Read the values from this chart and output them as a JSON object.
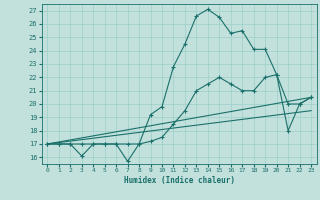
{
  "xlabel": "Humidex (Indice chaleur)",
  "background_color": "#c2e0dc",
  "grid_color": "#9ecfca",
  "line_color": "#1a706a",
  "xlim": [
    -0.5,
    23.5
  ],
  "ylim": [
    15.5,
    27.5
  ],
  "yticks": [
    16,
    17,
    18,
    19,
    20,
    21,
    22,
    23,
    24,
    25,
    26,
    27
  ],
  "xticks": [
    0,
    1,
    2,
    3,
    4,
    5,
    6,
    7,
    8,
    9,
    10,
    11,
    12,
    13,
    14,
    15,
    16,
    17,
    18,
    19,
    20,
    21,
    22,
    23
  ],
  "lines": [
    {
      "x": [
        0,
        1,
        2,
        3,
        4,
        5,
        6,
        7,
        8,
        9,
        10,
        11,
        12,
        13,
        14,
        15,
        16,
        17,
        18,
        19,
        20,
        21,
        22,
        23
      ],
      "y": [
        17,
        17,
        17,
        16.1,
        17,
        17,
        17,
        15.7,
        17,
        19.2,
        19.8,
        22.8,
        24.5,
        26.6,
        27.1,
        26.5,
        25.3,
        25.5,
        24.1,
        24.1,
        22.2,
        18.0,
        20.0,
        20.5
      ],
      "marker": true
    },
    {
      "x": [
        0,
        1,
        2,
        3,
        4,
        5,
        6,
        7,
        8,
        9,
        10,
        11,
        12,
        13,
        14,
        15,
        16,
        17,
        18,
        19,
        20,
        21,
        22,
        23
      ],
      "y": [
        17,
        17,
        17,
        17,
        17,
        17,
        17,
        17,
        17,
        17.2,
        17.5,
        18.5,
        19.5,
        21.0,
        21.5,
        22.0,
        21.5,
        21.0,
        21.0,
        22.0,
        22.2,
        20.0,
        20.0,
        20.5
      ],
      "marker": true
    },
    {
      "x": [
        0,
        23
      ],
      "y": [
        17,
        20.5
      ],
      "marker": false
    },
    {
      "x": [
        0,
        23
      ],
      "y": [
        17,
        19.5
      ],
      "marker": false
    }
  ]
}
